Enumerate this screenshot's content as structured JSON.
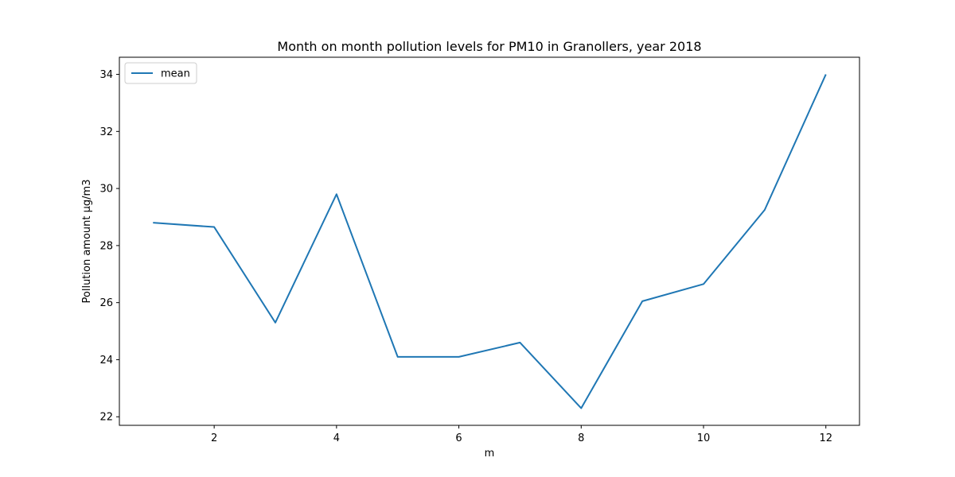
{
  "chart_data": {
    "type": "line",
    "title": "Month on month pollution levels for PM10 in Granollers, year 2018",
    "xlabel": "m",
    "ylabel": "Pollution amount µg/m3",
    "xlim": [
      0.45,
      12.55
    ],
    "ylim": [
      21.7,
      34.6
    ],
    "xticks": [
      2,
      4,
      6,
      8,
      10,
      12
    ],
    "yticks": [
      22,
      24,
      26,
      28,
      30,
      32,
      34
    ],
    "grid": false,
    "legend_position": "top-left",
    "series": [
      {
        "name": "mean",
        "color": "#1f77b4",
        "x": [
          1,
          2,
          3,
          4,
          5,
          6,
          7,
          8,
          9,
          10,
          11,
          12
        ],
        "values": [
          28.8,
          28.65,
          25.3,
          29.8,
          24.1,
          24.1,
          24.6,
          22.3,
          26.05,
          26.65,
          29.25,
          34.0
        ]
      }
    ]
  }
}
